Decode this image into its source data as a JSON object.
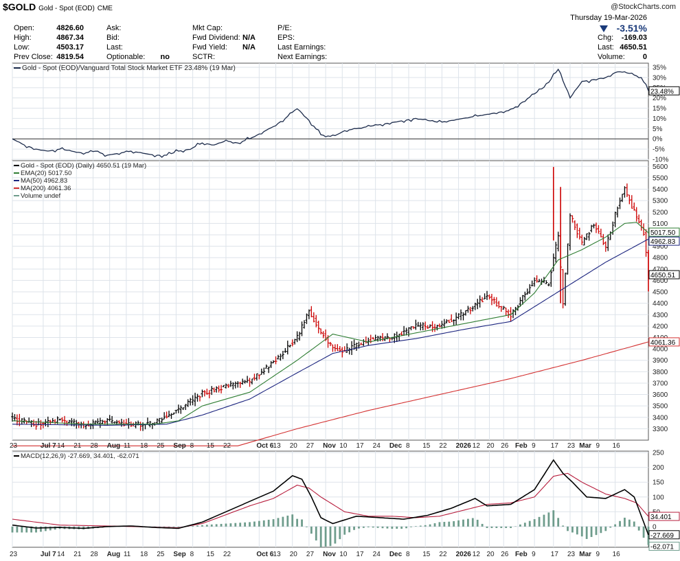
{
  "header": {
    "symbol": "$GOLD",
    "name": "Gold - Spot (EOD)",
    "exchange": "CME",
    "date": "Thursday  19-Mar-2026",
    "watermark": "@StockCharts.com",
    "change_pct": "-3.51%",
    "fields": [
      {
        "label": "Open:",
        "value": "4826.60"
      },
      {
        "label": "High:",
        "value": "4867.34"
      },
      {
        "label": "Low:",
        "value": "4503.17"
      },
      {
        "label": "Prev Close:",
        "value": "4819.54"
      },
      {
        "label": "Ask:",
        "value": ""
      },
      {
        "label": "Bid:",
        "value": ""
      },
      {
        "label": "Last:",
        "value": ""
      },
      {
        "label": "Optionable:",
        "value": "no"
      },
      {
        "label": "Mkt Cap:",
        "value": ""
      },
      {
        "label": "Fwd Dividend:",
        "value": "N/A"
      },
      {
        "label": "Fwd Yield:",
        "value": "N/A"
      },
      {
        "label": "SCTR:",
        "value": ""
      },
      {
        "label": "P/E:",
        "value": ""
      },
      {
        "label": "EPS:",
        "value": ""
      },
      {
        "label": "Last Earnings:",
        "value": ""
      },
      {
        "label": "Next Earnings:",
        "value": ""
      },
      {
        "label": "Chg:",
        "value": "-169.03"
      },
      {
        "label": "Last:",
        "value": "4650.51"
      },
      {
        "label": "Volume:",
        "value": "0"
      }
    ]
  },
  "colors": {
    "up": "#000000",
    "down": "#cc0000",
    "ema20": "#2e7d32",
    "ma50": "#1a237e",
    "ma200": "#d32f2f",
    "ratio": "#1b2a4a",
    "macd": "#000000",
    "signal": "#b71c3c",
    "hist": "#6e9c8c",
    "grid": "#dde3ea"
  },
  "chart_data": [
    {
      "type": "line",
      "legend": [
        "Gold - Spot (EOD)/Vanguard Total Stock Market ETF 23.48% (19 Mar)"
      ],
      "ylim": [
        -10,
        37
      ],
      "y_ticks": [
        "35%",
        "30%",
        "25%",
        "20%",
        "15%",
        "10%",
        "5%",
        "0%",
        "-5%",
        "-10%"
      ],
      "last_label": "23.48%",
      "x": [
        0,
        5,
        10,
        15,
        20,
        25,
        30,
        35,
        40,
        45,
        50,
        55,
        60,
        65,
        70,
        75,
        80,
        85,
        90,
        95,
        100,
        105,
        110,
        115,
        120,
        125,
        130,
        135,
        140,
        145,
        150,
        155,
        160,
        165,
        170,
        175,
        180,
        185,
        190,
        195,
        200,
        205,
        210,
        215,
        220,
        225,
        230,
        235,
        240,
        245,
        250,
        255,
        260,
        265,
        268
      ],
      "values": [
        0,
        -3,
        -5,
        -6,
        -5,
        -6,
        -7,
        -6,
        -8,
        -7,
        -6,
        -7,
        -8,
        -8,
        -6,
        -5,
        -2,
        -3,
        -1,
        -2,
        0,
        3,
        6,
        10,
        15,
        9,
        2,
        1,
        4,
        5,
        6,
        7,
        8,
        9,
        10,
        9,
        8,
        9,
        10,
        11,
        12,
        13,
        14,
        18,
        22,
        26,
        34,
        20,
        28,
        29,
        30,
        33,
        32,
        30,
        23.48
      ]
    },
    {
      "type": "bar",
      "subtype": "ohlc",
      "legend": [
        "Gold - Spot (EOD) (Daily) 4650.51 (19 Mar)",
        "EMA(20) 5017.50",
        "MA(50) 4962.83",
        "MA(200) 4061.36",
        "Volume undef"
      ],
      "ylim": [
        3200,
        5650
      ],
      "y_ticks": [
        "5600",
        "5500",
        "5400",
        "5300",
        "5200",
        "5100",
        "5000",
        "4900",
        "4800",
        "4700",
        "4600",
        "4500",
        "4400",
        "4300",
        "4200",
        "4100",
        "4000",
        "3900",
        "3800",
        "3700",
        "3600",
        "3500",
        "3400",
        "3300"
      ],
      "last_labels": {
        "ema20": "5017.50",
        "ma50": "4962.83",
        "close": "4650.51",
        "ma200": "4061.36"
      },
      "x_labels": [
        "23",
        "Jul 7",
        "14",
        "21",
        "28",
        "Aug",
        "11",
        "18",
        "25",
        "Sep",
        "8",
        "15",
        "22",
        "Oct 6",
        "13",
        "20",
        "27",
        "Nov",
        "10",
        "17",
        "24",
        "Dec",
        "8",
        "15",
        "22",
        "2026",
        "12",
        "20",
        "26",
        "Feb",
        "9",
        "17",
        "23",
        "Mar",
        "9",
        "16"
      ],
      "close_anchors": {
        "x": [
          0,
          10,
          20,
          30,
          40,
          50,
          60,
          70,
          80,
          90,
          100,
          110,
          120,
          125,
          130,
          135,
          140,
          150,
          160,
          170,
          180,
          190,
          200,
          210,
          220,
          226,
          230,
          232,
          235,
          240,
          245,
          250,
          255,
          258,
          262,
          266,
          268
        ],
        "values": [
          3390,
          3340,
          3380,
          3330,
          3370,
          3330,
          3350,
          3470,
          3610,
          3670,
          3720,
          3880,
          4100,
          4330,
          4150,
          4000,
          3980,
          4080,
          4100,
          4200,
          4200,
          4310,
          4460,
          4300,
          4600,
          4570,
          5000,
          4400,
          5180,
          4920,
          5100,
          4880,
          5250,
          5400,
          5200,
          5020,
          4650.51
        ]
      },
      "ema20_anchors": {
        "x": [
          0,
          30,
          60,
          70,
          80,
          100,
          120,
          135,
          150,
          170,
          190,
          210,
          220,
          230,
          240,
          250,
          258,
          263,
          268
        ],
        "values": [
          3370,
          3340,
          3340,
          3370,
          3500,
          3620,
          3900,
          4130,
          4060,
          4140,
          4220,
          4300,
          4490,
          4780,
          4870,
          4980,
          5100,
          5110,
          5017.5
        ]
      },
      "ma50_anchors": {
        "x": [
          0,
          40,
          65,
          80,
          100,
          120,
          135,
          150,
          170,
          190,
          210,
          230,
          250,
          268
        ],
        "values": [
          3340,
          3330,
          3340,
          3420,
          3560,
          3790,
          3960,
          4030,
          4090,
          4170,
          4240,
          4500,
          4760,
          4962.83
        ]
      },
      "ma200_anchors": {
        "x": [
          95,
          120,
          150,
          180,
          210,
          240,
          268
        ],
        "values": [
          3150,
          3300,
          3460,
          3600,
          3740,
          3900,
          4061.36
        ]
      }
    },
    {
      "type": "line",
      "legend": [
        "MACD(12,26,9) -27.669, 34.401, -62.071"
      ],
      "ylim": [
        -70,
        255
      ],
      "y_ticks": [
        "250",
        "200",
        "150",
        "100",
        "50",
        "0"
      ],
      "last_labels": {
        "signal": "34.401",
        "macd": "-27.669",
        "hist": "-62.071"
      },
      "x_labels": [
        "23",
        "Jul 7",
        "14",
        "21",
        "28",
        "Aug",
        "11",
        "18",
        "25",
        "Sep",
        "8",
        "15",
        "22",
        "Oct 6",
        "13",
        "20",
        "27",
        "Nov",
        "10",
        "17",
        "24",
        "Dec",
        "8",
        "15",
        "22",
        "2026",
        "12",
        "20",
        "26",
        "Feb",
        "9",
        "17",
        "23",
        "Mar",
        "9",
        "16"
      ],
      "macd_anchors": {
        "x": [
          0,
          10,
          20,
          30,
          40,
          50,
          60,
          70,
          80,
          90,
          100,
          110,
          118,
          122,
          126,
          130,
          135,
          145,
          155,
          165,
          175,
          185,
          195,
          200,
          210,
          220,
          228,
          232,
          236,
          242,
          250,
          258,
          262,
          268
        ],
        "values": [
          5,
          -5,
          -3,
          -6,
          0,
          2,
          -3,
          -6,
          15,
          50,
          85,
          120,
          172,
          160,
          100,
          30,
          10,
          35,
          30,
          25,
          38,
          62,
          95,
          70,
          75,
          125,
          225,
          180,
          150,
          100,
          95,
          125,
          100,
          -27.669
        ]
      },
      "signal_anchors": {
        "x": [
          0,
          20,
          40,
          60,
          70,
          80,
          90,
          100,
          110,
          120,
          125,
          130,
          140,
          150,
          160,
          170,
          180,
          190,
          200,
          210,
          220,
          228,
          234,
          240,
          250,
          258,
          263,
          268
        ],
        "values": [
          25,
          5,
          2,
          -2,
          -4,
          10,
          40,
          70,
          95,
          140,
          130,
          100,
          50,
          35,
          35,
          30,
          35,
          55,
          75,
          80,
          100,
          170,
          180,
          150,
          110,
          95,
          80,
          34.401
        ]
      }
    }
  ]
}
